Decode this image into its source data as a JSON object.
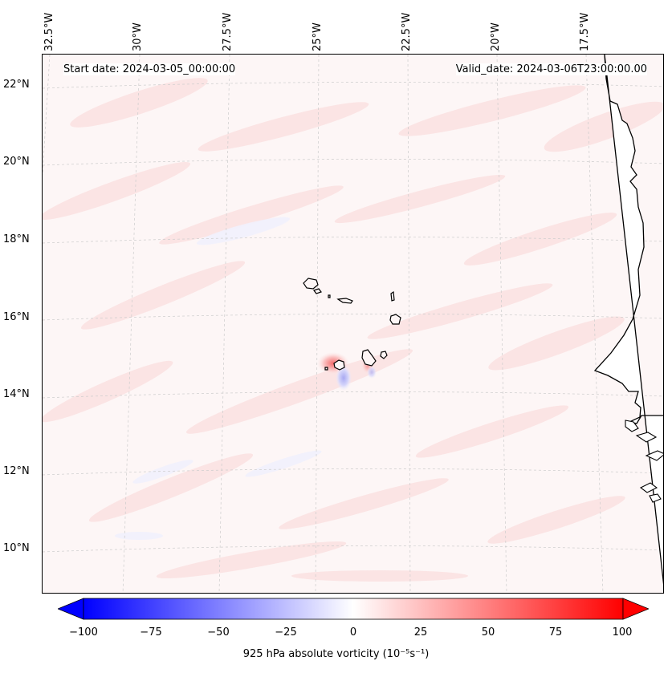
{
  "map": {
    "lon_labels": [
      "32.5°W",
      "30°W",
      "27.5°W",
      "25°W",
      "22.5°W",
      "20°W",
      "17.5°W"
    ],
    "lat_labels": [
      "22°N",
      "20°N",
      "18°N",
      "16°N",
      "14°N",
      "12°N",
      "10°N"
    ],
    "start_date": "Start date: 2024-03-05_00:00:00",
    "valid_date": "Valid_date: 2024-03-06T23:00:00.00",
    "background_color": "#fdf6f6",
    "land_color": "#ffffff",
    "coastline_color": "#000000",
    "gridline_color": "#cccccc"
  },
  "colorbar": {
    "ticks": [
      "−100",
      "−75",
      "−50",
      "−25",
      "0",
      "25",
      "50",
      "75",
      "100"
    ],
    "label": "925 hPa absolute vorticity (10⁻⁵s⁻¹)",
    "min_color": "#0000ff",
    "mid_color": "#ffffff",
    "max_color": "#ff0000",
    "extend": "both"
  }
}
